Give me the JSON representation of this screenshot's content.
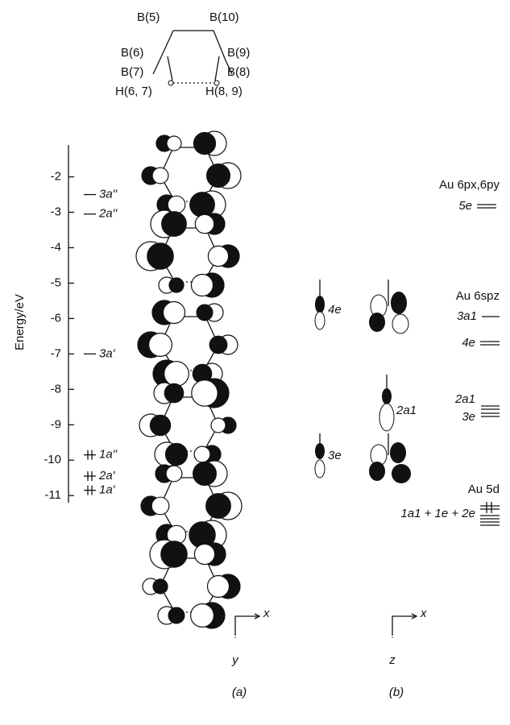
{
  "structure": {
    "labels": [
      "B(5)",
      "B(10)",
      "B(6)",
      "B(9)",
      "B(7)",
      "B(8)",
      "H(6, 7)",
      "H(8, 9)"
    ]
  },
  "panel_a": {
    "axis_label": "Energy/eV",
    "ylim": [
      -1.1,
      -11.2
    ],
    "yticks": [
      -2,
      -3,
      -4,
      -5,
      -6,
      -7,
      -8,
      -9,
      -10,
      -11
    ],
    "levels": [
      {
        "label": "3a′′",
        "energy": -2.5,
        "occupied": false
      },
      {
        "label": "2a′′",
        "energy": -3.05,
        "occupied": false
      },
      {
        "label": "3a′",
        "energy": -7.0,
        "occupied": false
      },
      {
        "label": "1a′′",
        "energy": -9.85,
        "occupied": true
      },
      {
        "label": "2a′",
        "energy": -10.45,
        "occupied": true
      },
      {
        "label": "1a′",
        "energy": -10.85,
        "occupied": true
      }
    ]
  },
  "panel_b": {
    "orbital_labels": [
      "4e",
      "2a1",
      "3e"
    ],
    "au_labels": [
      "Au 6px,6py",
      "5e",
      "Au 6spz",
      "3a1",
      "4e",
      "2a1",
      "3e",
      "Au 5d",
      "1a1 + 1e + 2e"
    ]
  },
  "axes": {
    "a": [
      "x",
      "y"
    ],
    "b": [
      "x",
      "z"
    ]
  },
  "captions": [
    "(a)",
    "(b)"
  ]
}
